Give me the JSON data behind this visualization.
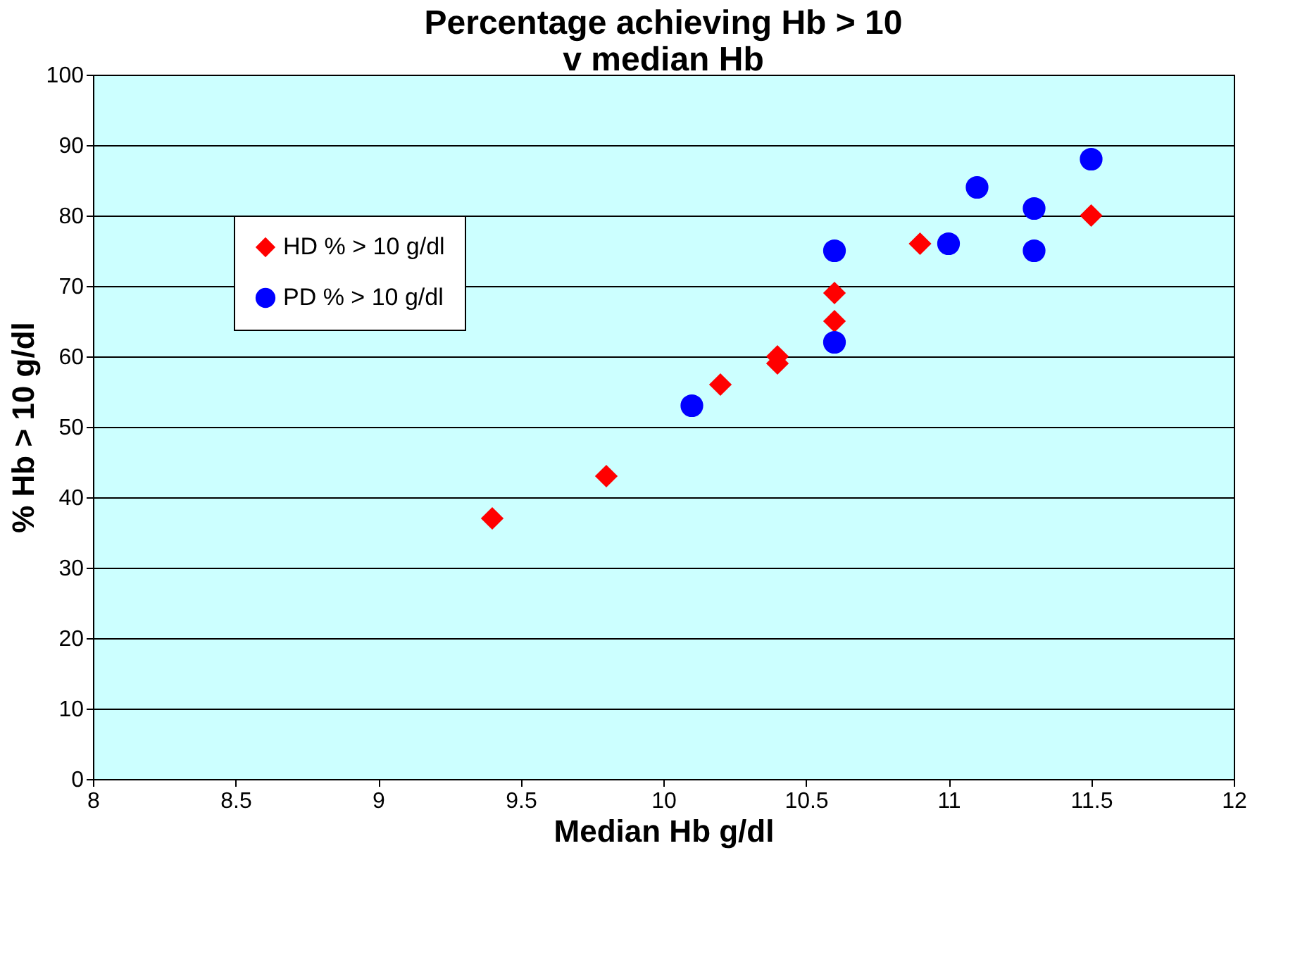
{
  "chart_data": {
    "type": "scatter",
    "title": [
      "Percentage achieving Hb > 10",
      "v median Hb"
    ],
    "xlabel": "Median Hb g/dl",
    "ylabel": "% Hb > 10 g/dl",
    "xlim": [
      8,
      12
    ],
    "xticks": [
      8,
      8.5,
      9,
      9.5,
      10,
      10.5,
      11,
      11.5,
      12
    ],
    "ylim": [
      0,
      100
    ],
    "yticks": [
      0,
      10,
      20,
      30,
      40,
      50,
      60,
      70,
      80,
      90,
      100
    ],
    "grid": "y",
    "legend": "top left",
    "series": [
      {
        "name": "HD % > 10 g/dl",
        "color": "#ff0000",
        "marker": "diamond",
        "x": [
          9.4,
          9.8,
          10.2,
          10.4,
          10.4,
          10.6,
          10.6,
          10.9,
          11.5
        ],
        "values": [
          37,
          43,
          56,
          60,
          59,
          69,
          65,
          76,
          80
        ]
      },
      {
        "name": "PD % > 10 g/dl",
        "color": "#0000ff",
        "marker": "circle",
        "x": [
          10.1,
          10.6,
          10.6,
          11.0,
          11.1,
          11.3,
          11.3,
          11.5
        ],
        "values": [
          53,
          75,
          62,
          76,
          84,
          81,
          75,
          88
        ]
      }
    ]
  }
}
